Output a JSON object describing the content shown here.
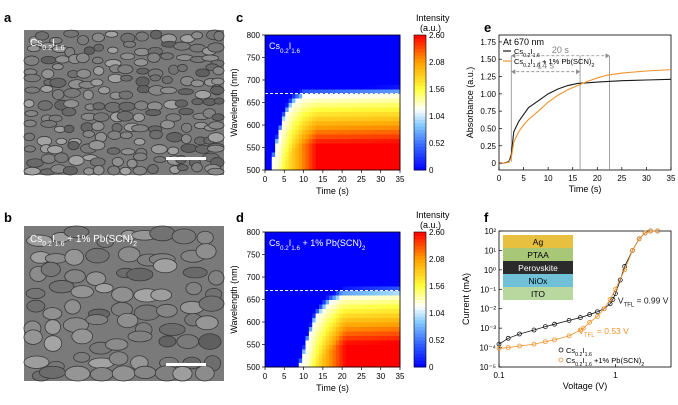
{
  "panels": {
    "a": {
      "letter": "a",
      "sample_label": "Cs0.2I1.6"
    },
    "b": {
      "letter": "b",
      "sample_label": "Cs0.2I1.6 + 1% Pb(SCN)2"
    },
    "c": {
      "letter": "c"
    },
    "d": {
      "letter": "d"
    },
    "e": {
      "letter": "e"
    },
    "f": {
      "letter": "f"
    }
  },
  "colors": {
    "black_series": "#1a1a1a",
    "orange_series": "#f0922a",
    "arrow_gray": "#8a8a8a",
    "sem_background": "#7a7a7a",
    "colormap": [
      "#0000ff",
      "#3060ff",
      "#80c8ff",
      "#ffffff",
      "#ffff40",
      "#ffa000",
      "#ff0000"
    ]
  },
  "layers": [
    "Ag",
    "PTAA",
    "Perovskite",
    "NiOx",
    "ITO"
  ],
  "layer_colors": [
    "#e8c040",
    "#a8c878",
    "#2b2b2b",
    "#70c0d8",
    "#b8d8a0"
  ],
  "chart_data": [
    {
      "panel": "c",
      "type": "heatmap",
      "inset_label": "Cs0.2I1.6",
      "xlabel": "Time (s)",
      "ylabel": "Wavelength (nm)",
      "xlim": [
        0,
        35
      ],
      "ylim": [
        500,
        800
      ],
      "xticks": [
        0,
        5,
        10,
        15,
        20,
        25,
        30,
        35
      ],
      "yticks": [
        500,
        550,
        600,
        650,
        700,
        750,
        800
      ],
      "reference_line_nm": 670,
      "colorbar": {
        "title": "Intensity",
        "unit": "(a.u.)",
        "range": [
          0,
          2.6
        ],
        "ticks": [
          "2.60",
          "2.08",
          "1.56",
          "1.04",
          "0.52",
          "0"
        ]
      },
      "edge_contour": [
        [
          1.5,
          500
        ],
        [
          3,
          560
        ],
        [
          5,
          620
        ],
        [
          7,
          650
        ],
        [
          10,
          665
        ],
        [
          35,
          670
        ]
      ],
      "onset_s": 1.5
    },
    {
      "panel": "d",
      "type": "heatmap",
      "inset_label": "Cs0.2I1.6 + 1% Pb(SCN)2",
      "xlabel": "Time (s)",
      "ylabel": "Wavelength (nm)",
      "xlim": [
        0,
        35
      ],
      "ylim": [
        500,
        800
      ],
      "xticks": [
        0,
        5,
        10,
        15,
        20,
        25,
        30,
        35
      ],
      "yticks": [
        500,
        550,
        600,
        650,
        700,
        750,
        800
      ],
      "reference_line_nm": 670,
      "colorbar": {
        "title": "Intensity",
        "unit": "(a.u.)",
        "range": [
          0,
          2.6
        ],
        "ticks": [
          "2.60",
          "2.08",
          "1.56",
          "1.04",
          "0.52",
          "0"
        ]
      },
      "edge_contour": [
        [
          9,
          500
        ],
        [
          11,
          560
        ],
        [
          13,
          610
        ],
        [
          16,
          640
        ],
        [
          20,
          660
        ],
        [
          35,
          665
        ]
      ],
      "onset_s": 9
    },
    {
      "panel": "e",
      "type": "line",
      "title": "At 670 nm",
      "xlabel": "Time (s)",
      "ylabel": "Absorbance (a.u.)",
      "xlim": [
        0,
        35
      ],
      "ylim": [
        -0.1,
        1.85
      ],
      "xticks": [
        0,
        5,
        10,
        15,
        20,
        25,
        30,
        35
      ],
      "yticks": [
        0,
        0.25,
        0.5,
        0.75,
        1.0,
        1.25,
        1.5,
        1.75
      ],
      "ytick_labels": [
        "0",
        "0.25",
        "0.50",
        "0.75",
        "1.00",
        "1.25",
        "1.50",
        "1.75"
      ],
      "series": [
        {
          "name": "Cs0.2I1.6",
          "x": [
            0,
            1,
            2,
            2.5,
            3,
            4,
            5,
            6,
            8,
            10,
            12,
            14,
            16,
            18,
            20,
            25,
            30,
            35
          ],
          "y": [
            0,
            0,
            0.02,
            0.12,
            0.45,
            0.6,
            0.7,
            0.8,
            0.9,
            1.0,
            1.07,
            1.12,
            1.15,
            1.16,
            1.17,
            1.19,
            1.2,
            1.21
          ]
        },
        {
          "name": "Cs0.2I1.6 + 1% Pb(SCN)2",
          "x": [
            0,
            1,
            2,
            2.5,
            3,
            4,
            5,
            6,
            8,
            10,
            12,
            14,
            16,
            18,
            20,
            22,
            25,
            30,
            35
          ],
          "y": [
            0,
            0,
            0.01,
            0.08,
            0.3,
            0.45,
            0.55,
            0.63,
            0.75,
            0.88,
            0.98,
            1.06,
            1.12,
            1.18,
            1.23,
            1.27,
            1.3,
            1.33,
            1.35
          ]
        }
      ],
      "annotations": [
        {
          "label": "20 s",
          "from": 2.5,
          "to": 22.5,
          "y": 1.55
        },
        {
          "label": "14 s",
          "from": 2.5,
          "to": 16.5,
          "y": 1.32
        }
      ],
      "markers_x": [
        16.5,
        22.5
      ]
    },
    {
      "panel": "f",
      "type": "scatter",
      "xlabel": "Voltage (V)",
      "ylabel": "Current (mA)",
      "xscale": "log",
      "yscale": "log",
      "xlim": [
        0.1,
        3
      ],
      "ylim": [
        1e-05,
        100
      ],
      "xticks": [
        0.1,
        1
      ],
      "xtick_labels": [
        "0.1",
        "1"
      ],
      "yticks": [
        1e-05,
        0.0001,
        0.001,
        0.01,
        0.1,
        1,
        10,
        100
      ],
      "ytick_labels": [
        "10⁻⁵",
        "10⁻⁴",
        "10⁻³",
        "10⁻²",
        "10⁻¹",
        "10⁰",
        "10¹",
        "10²"
      ],
      "series": [
        {
          "name": "Cs0.2I1.6",
          "x": [
            0.1,
            0.12,
            0.15,
            0.2,
            0.25,
            0.3,
            0.4,
            0.5,
            0.6,
            0.7,
            0.8,
            0.9,
            0.95,
            1.0,
            1.1,
            1.2,
            1.4,
            1.6,
            1.8,
            2.0,
            2.3
          ],
          "y": [
            0.00015,
            0.0003,
            0.0005,
            0.0008,
            0.0012,
            0.0016,
            0.0025,
            0.0035,
            0.005,
            0.007,
            0.01,
            0.018,
            0.03,
            0.06,
            0.3,
            1.5,
            10,
            40,
            80,
            100,
            100
          ]
        },
        {
          "name": "Cs0.2I1.6 +1% Pb(SCN)2",
          "x": [
            0.1,
            0.12,
            0.15,
            0.2,
            0.25,
            0.3,
            0.4,
            0.5,
            0.53,
            0.6,
            0.7,
            0.8,
            0.9,
            1.0,
            1.2,
            1.4,
            1.6,
            1.8,
            2.0,
            2.3
          ],
          "y": [
            9e-05,
            0.0001,
            0.00012,
            0.00015,
            0.0002,
            0.00025,
            0.0004,
            0.0008,
            0.001,
            0.002,
            0.004,
            0.01,
            0.03,
            0.1,
            1,
            10,
            40,
            80,
            100,
            100
          ]
        }
      ],
      "annotations": [
        {
          "label": "VTFL = 0.99 V",
          "series": 0
        },
        {
          "label": "VTFL = 0.53 V",
          "series": 1
        }
      ]
    }
  ]
}
